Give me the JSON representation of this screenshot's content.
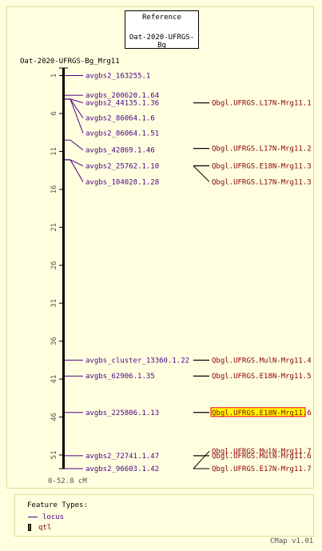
{
  "reference": {
    "label": "Reference",
    "map_set": "Oat-2020-UFRGS-Bg"
  },
  "map": {
    "title": "Oat-2020-UFRGS-Bg_Mrg11",
    "range_label": "0-52.8 cM",
    "range": [
      0,
      52.8
    ],
    "ticks": [
      1,
      6,
      11,
      16,
      21,
      26,
      31,
      36,
      41,
      46,
      51
    ]
  },
  "loci": [
    {
      "name": "avgbs2_163255.1",
      "pos": 1.0,
      "label_pos": 1.0
    },
    {
      "name": "avgbs_200620.1.64",
      "pos": 3.6,
      "label_pos": 3.6
    },
    {
      "name": "avgbs2_44135.1.36",
      "pos": 4.1,
      "label_pos": 4.6
    },
    {
      "name": "avgbs2_86064.1.6",
      "pos": 4.1,
      "label_pos": 6.6
    },
    {
      "name": "avgbs2_86064.1.51",
      "pos": 4.1,
      "label_pos": 8.6
    },
    {
      "name": "avgbs_42869.1.46",
      "pos": 9.5,
      "label_pos": 10.8
    },
    {
      "name": "avgbs2_25762.1.10",
      "pos": 12.1,
      "label_pos": 12.9
    },
    {
      "name": "avgbs_104028.1.28",
      "pos": 12.1,
      "label_pos": 15.0
    },
    {
      "name": "avgbs_cluster_13360.1.22",
      "pos": 38.5,
      "label_pos": 38.5
    },
    {
      "name": "avgbs_62906.1.35",
      "pos": 40.6,
      "label_pos": 40.6
    },
    {
      "name": "avgbs_225806.1.13",
      "pos": 45.4,
      "label_pos": 45.4
    },
    {
      "name": "avgbs2_72741.1.47",
      "pos": 51.1,
      "label_pos": 51.1
    },
    {
      "name": "avgbs2_96603.1.42",
      "pos": 52.8,
      "label_pos": 52.8
    }
  ],
  "qtls": [
    {
      "name": "Qbgl.UFRGS.L17N-Mrg11.1",
      "pos": 4.6,
      "label_pos": 4.6,
      "highlight": false
    },
    {
      "name": "Qbgl.UFRGS.L17N-Mrg11.2",
      "pos": 10.6,
      "label_pos": 10.6,
      "highlight": false
    },
    {
      "name": "Qbgl.UFRGS.E18N-Mrg11.3",
      "pos": 12.9,
      "label_pos": 12.9,
      "highlight": false
    },
    {
      "name": "Qbgl.UFRGS.L17N-Mrg11.3",
      "pos": 12.9,
      "label_pos": 15.0,
      "highlight": false
    },
    {
      "name": "Qbgl.UFRGS.MulN-Mrg11.4",
      "pos": 38.5,
      "label_pos": 38.5,
      "highlight": false
    },
    {
      "name": "Qbgl.UFRGS.E18N-Mrg11.5",
      "pos": 40.6,
      "label_pos": 40.6,
      "highlight": false
    },
    {
      "name": "Qbgl.UFRGS.E18N-Mrg11.6",
      "pos": 45.4,
      "label_pos": 45.4,
      "highlight": true
    },
    {
      "name": "Qbgl.UFRGS.MulN-Mrg11.6",
      "pos": 51.1,
      "label_pos": 51.1,
      "highlight": false
    },
    {
      "name": "Qbgl.UFRGS.MulN-Mrg11.7",
      "pos": 52.8,
      "label_pos": 50.5,
      "highlight": false
    },
    {
      "name": "Qbgl.UFRGS.E17N-Mrg11.7",
      "pos": 52.8,
      "label_pos": 52.8,
      "highlight": false
    }
  ],
  "legend": {
    "title": "Feature Types:",
    "items": [
      {
        "label": "locus"
      },
      {
        "label": "qtl"
      }
    ]
  },
  "version": "CMap v1.01",
  "colors": {
    "background": "#FFFFE0",
    "locus": "#4B0082",
    "qtl": "#8B0000",
    "highlight_fill": "#FFFF00",
    "highlight_border": "#FF0000"
  }
}
